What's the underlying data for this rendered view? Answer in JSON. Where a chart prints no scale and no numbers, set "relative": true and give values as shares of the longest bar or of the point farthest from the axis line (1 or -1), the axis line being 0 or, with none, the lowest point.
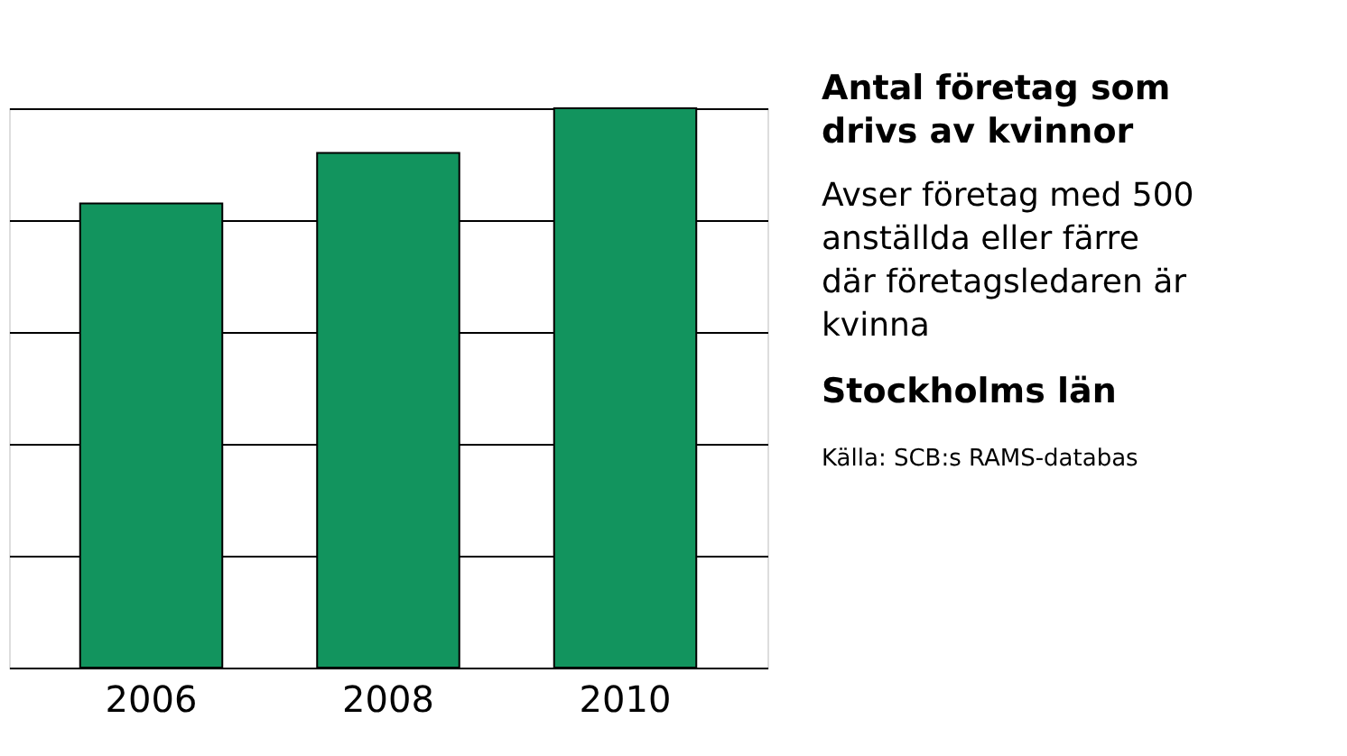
{
  "chart_data": {
    "type": "bar",
    "title": "Antal företag som drivs av kvinnor",
    "subtitle": "Avser företag med 500 anställda eller färre där företagsledaren är kvinna",
    "annotations": [
      "Stockholms län",
      "Källa: SCB:s RAMS-databas"
    ],
    "categories": [
      "2006",
      "2008",
      "2010"
    ],
    "values": [
      0.83,
      0.92,
      1
    ],
    "color": "#12945e",
    "relative": true,
    "grid": "y"
  }
}
